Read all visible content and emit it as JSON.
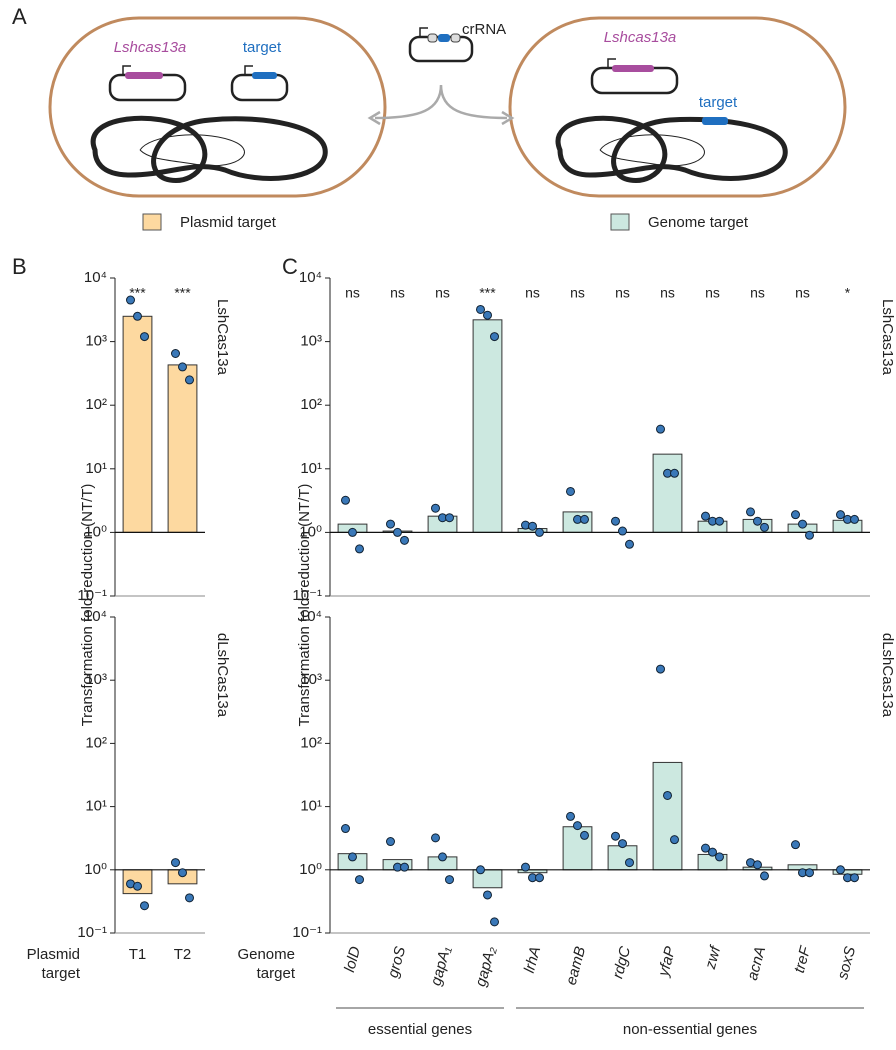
{
  "panels": {
    "a": "A",
    "b": "B",
    "c": "C"
  },
  "diagram": {
    "left_gene": "Lshcas13a",
    "left_target": "target",
    "crrna": "crRNA",
    "right_gene": "Lshcas13a",
    "right_target": "target",
    "legend": [
      {
        "label": "Plasmid target",
        "color": "#fdd9a0"
      },
      {
        "label": "Genome target",
        "color": "#cce8e0"
      }
    ]
  },
  "chart_data": [
    {
      "type": "bar",
      "title": "LshCas13a",
      "ylabel": "Transformation fold-reduction (NT/T)",
      "log": true,
      "ylim": [
        0.1,
        10000
      ],
      "yticks": [
        {
          "value": 0.1,
          "label": "10⁻¹"
        },
        {
          "value": 1,
          "label": "10⁰"
        },
        {
          "value": 10,
          "label": "10¹"
        },
        {
          "value": 100,
          "label": "10²"
        },
        {
          "value": 1000,
          "label": "10³"
        },
        {
          "value": 10000,
          "label": "10⁴"
        }
      ],
      "categories": [
        null,
        null
      ],
      "color": "#fdd9a0",
      "point_color": "#3a78b8",
      "values": [
        2500,
        430
      ],
      "points": [
        [
          4500,
          2500,
          1200
        ],
        [
          650,
          400,
          250
        ]
      ],
      "annotations": [
        "***",
        "***"
      ]
    },
    {
      "type": "bar",
      "title": "dLshCas13a",
      "xlabel": "Plasmid target",
      "log": true,
      "ylim": [
        0.1,
        10000
      ],
      "yticks": [
        {
          "value": 0.1,
          "label": "10⁻¹"
        },
        {
          "value": 1,
          "label": "10⁰"
        },
        {
          "value": 10,
          "label": "10¹"
        },
        {
          "value": 100,
          "label": "10²"
        },
        {
          "value": 1000,
          "label": "10³"
        },
        {
          "value": 10000,
          "label": "10⁴"
        }
      ],
      "categories": [
        "T1",
        "T2"
      ],
      "color": "#fdd9a0",
      "point_color": "#3a78b8",
      "values": [
        0.42,
        0.6
      ],
      "points": [
        [
          0.6,
          0.55,
          0.27
        ],
        [
          1.3,
          0.9,
          0.36
        ]
      ]
    },
    {
      "type": "bar",
      "title": "LshCas13a",
      "ylabel": "Transformation fold-reduction (NT/T)",
      "log": true,
      "ylim": [
        0.1,
        10000
      ],
      "yticks": [
        {
          "value": 0.1,
          "label": "10⁻¹"
        },
        {
          "value": 1,
          "label": "10⁰"
        },
        {
          "value": 10,
          "label": "10¹"
        },
        {
          "value": 100,
          "label": "10²"
        },
        {
          "value": 1000,
          "label": "10³"
        },
        {
          "value": 10000,
          "label": "10⁴"
        }
      ],
      "categories": [
        null,
        null,
        null,
        null,
        null,
        null,
        null,
        null,
        null,
        null,
        null,
        null
      ],
      "color": "#cce8e0",
      "point_color": "#3a78b8",
      "values": [
        1.35,
        1.05,
        1.8,
        2200,
        1.15,
        2.1,
        1.0,
        17,
        1.5,
        1.6,
        1.35,
        1.55
      ],
      "points": [
        [
          3.2,
          1.0,
          0.55
        ],
        [
          1.35,
          1.0,
          0.75
        ],
        [
          2.4,
          1.7,
          1.7
        ],
        [
          3200,
          2600,
          1200
        ],
        [
          1.3,
          1.25,
          1.0
        ],
        [
          4.4,
          1.6,
          1.6
        ],
        [
          1.5,
          1.05,
          0.65
        ],
        [
          42,
          8.5,
          8.5
        ],
        [
          1.8,
          1.5,
          1.5
        ],
        [
          2.1,
          1.5,
          1.2
        ],
        [
          1.9,
          1.35,
          0.9
        ],
        [
          1.9,
          1.6,
          1.6
        ]
      ],
      "annotations": [
        "ns",
        "ns",
        "ns",
        "***",
        "ns",
        "ns",
        "ns",
        "ns",
        "ns",
        "ns",
        "ns",
        "*"
      ]
    },
    {
      "type": "bar",
      "title": "dLshCas13a",
      "xlabel": "Genome target",
      "log": true,
      "ylim": [
        0.1,
        10000
      ],
      "yticks": [
        {
          "value": 0.1,
          "label": "10⁻¹"
        },
        {
          "value": 1,
          "label": "10⁰"
        },
        {
          "value": 10,
          "label": "10¹"
        },
        {
          "value": 100,
          "label": "10²"
        },
        {
          "value": 1000,
          "label": "10³"
        },
        {
          "value": 10000,
          "label": "10⁴"
        }
      ],
      "categories": [
        "lolD",
        "groS",
        "gapA₁",
        "gapA₂",
        "lrhA",
        "eamB",
        "rdgC",
        "yfaP",
        "zwf",
        "acnA",
        "treF",
        "soxS"
      ],
      "italic": true,
      "color": "#cce8e0",
      "point_color": "#3a78b8",
      "values": [
        1.8,
        1.45,
        1.6,
        0.52,
        0.9,
        4.8,
        2.4,
        50,
        1.75,
        1.1,
        1.2,
        0.85
      ],
      "points": [
        [
          4.5,
          1.6,
          0.7
        ],
        [
          2.8,
          1.1,
          1.1
        ],
        [
          3.2,
          1.6,
          0.7
        ],
        [
          1.0,
          0.4,
          0.15
        ],
        [
          1.1,
          0.75,
          0.75
        ],
        [
          7,
          5,
          3.5
        ],
        [
          3.4,
          2.6,
          1.3
        ],
        [
          1500,
          15,
          3
        ],
        [
          2.2,
          1.9,
          1.6
        ],
        [
          1.3,
          1.2,
          0.8
        ],
        [
          2.5,
          0.9,
          0.9
        ],
        [
          1.0,
          0.75,
          0.75
        ]
      ],
      "groups": [
        {
          "label": "essential genes",
          "size": 4
        },
        {
          "label": "non-essential genes",
          "size": 8
        }
      ]
    }
  ]
}
